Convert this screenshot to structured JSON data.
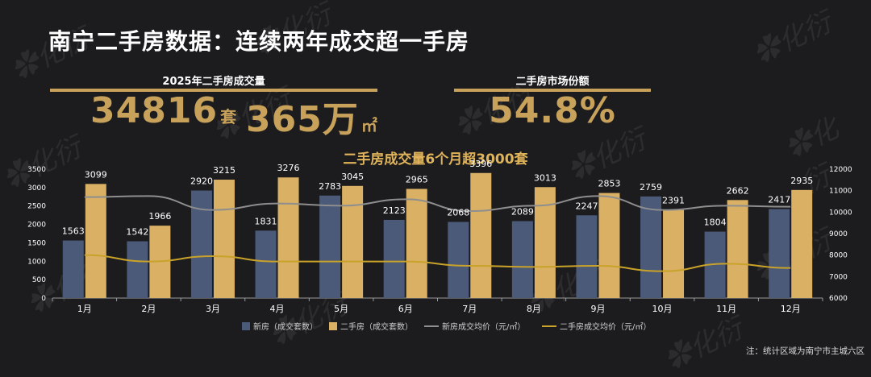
{
  "header": {
    "title": "南宁二手房数据：连续两年成交超一手房"
  },
  "kpi": {
    "volume_label": "2025年二手房成交量",
    "units_value": "34816",
    "units_unit": "套",
    "area_value": "365万",
    "area_unit": "㎡",
    "share_label": "二手房市场份额",
    "share_value": "54.8%"
  },
  "chart_data": {
    "type": "bar",
    "title": "二手房成交量6个月超3000套",
    "categories": [
      "1月",
      "2月",
      "3月",
      "4月",
      "5月",
      "6月",
      "7月",
      "8月",
      "9月",
      "10月",
      "11月",
      "12月"
    ],
    "series": [
      {
        "name": "新房（成交套数）",
        "kind": "bar",
        "axis": "left",
        "color": "#4a5a78",
        "values": [
          1563,
          1542,
          2920,
          1831,
          2783,
          2123,
          2068,
          2089,
          2247,
          2759,
          1804,
          2417
        ]
      },
      {
        "name": "二手房（成交套数）",
        "kind": "bar",
        "axis": "left",
        "color": "#d9b064",
        "values": [
          3099,
          1966,
          3215,
          3276,
          3045,
          2965,
          3396,
          3013,
          2853,
          2391,
          2662,
          2935
        ]
      },
      {
        "name": "新房成交均价（元/㎡）",
        "kind": "line",
        "axis": "right",
        "color": "#8e8e8e",
        "values": [
          10700,
          10750,
          10100,
          10400,
          10300,
          10600,
          10050,
          10300,
          10750,
          10100,
          10300,
          10250
        ]
      },
      {
        "name": "二手房成交均价（元/㎡）",
        "kind": "line",
        "axis": "right",
        "color": "#c9a22a",
        "values": [
          8000,
          7700,
          7950,
          7700,
          7700,
          7700,
          7500,
          7450,
          7500,
          7250,
          7600,
          7400
        ]
      }
    ],
    "left_axis": {
      "min": 0,
      "max": 3500,
      "ticks": [
        0,
        500,
        1000,
        1500,
        2000,
        2500,
        3000,
        3500
      ]
    },
    "right_axis": {
      "min": 6000,
      "max": 12000,
      "ticks": [
        6000,
        7000,
        8000,
        9000,
        10000,
        11000,
        12000
      ]
    },
    "legend_position": "bottom"
  },
  "footer": {
    "note": "注：统计区域为南宁市主城六区"
  }
}
